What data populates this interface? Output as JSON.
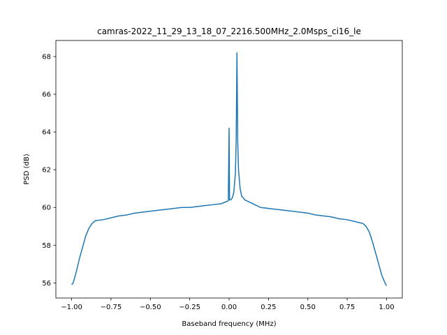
{
  "chart_data": {
    "type": "line",
    "title": "camras-2022_11_29_13_18_07_2216.500MHz_2.0Msps_ci16_le",
    "x_label": "Baseband frequency (MHz)",
    "y_label": "PSD (dB)",
    "x": [
      -1.0,
      -0.99,
      -0.97,
      -0.95,
      -0.93,
      -0.91,
      -0.89,
      -0.87,
      -0.85,
      -0.8,
      -0.75,
      -0.7,
      -0.65,
      -0.6,
      -0.55,
      -0.5,
      -0.45,
      -0.4,
      -0.35,
      -0.3,
      -0.25,
      -0.2,
      -0.15,
      -0.1,
      -0.05,
      -0.02,
      -0.005,
      0.0,
      0.003,
      0.01,
      0.02,
      0.03,
      0.04,
      0.045,
      0.05,
      0.055,
      0.06,
      0.07,
      0.08,
      0.1,
      0.15,
      0.2,
      0.25,
      0.3,
      0.35,
      0.4,
      0.45,
      0.5,
      0.55,
      0.6,
      0.65,
      0.7,
      0.75,
      0.8,
      0.85,
      0.87,
      0.89,
      0.91,
      0.93,
      0.95,
      0.97,
      0.99,
      1.0
    ],
    "series": [
      {
        "name": "PSD",
        "color": "#1f77b4",
        "values": [
          55.9,
          56.0,
          56.6,
          57.3,
          57.9,
          58.5,
          58.9,
          59.15,
          59.3,
          59.35,
          59.45,
          59.55,
          59.6,
          59.7,
          59.75,
          59.8,
          59.85,
          59.9,
          59.95,
          60.0,
          60.0,
          60.05,
          60.1,
          60.15,
          60.2,
          60.3,
          60.35,
          64.2,
          60.4,
          60.4,
          60.5,
          60.8,
          61.8,
          63.5,
          68.2,
          63.5,
          62.0,
          61.0,
          60.6,
          60.4,
          60.2,
          60.0,
          59.95,
          59.9,
          59.85,
          59.8,
          59.75,
          59.7,
          59.6,
          59.55,
          59.5,
          59.4,
          59.35,
          59.25,
          59.15,
          59.0,
          58.7,
          58.2,
          57.6,
          57.0,
          56.4,
          56.0,
          55.85
        ]
      }
    ],
    "xlim": [
      -1.1,
      1.1
    ],
    "ylim": [
      55.2,
      68.85
    ],
    "xticks": [
      {
        "value": -1.0,
        "label": "−1.00"
      },
      {
        "value": -0.75,
        "label": "−0.75"
      },
      {
        "value": -0.5,
        "label": "−0.50"
      },
      {
        "value": -0.25,
        "label": "−0.25"
      },
      {
        "value": 0.0,
        "label": "0.00"
      },
      {
        "value": 0.25,
        "label": "0.25"
      },
      {
        "value": 0.5,
        "label": "0.50"
      },
      {
        "value": 0.75,
        "label": "0.75"
      },
      {
        "value": 1.0,
        "label": "1.00"
      }
    ],
    "yticks": [
      56,
      58,
      60,
      62,
      64,
      66,
      68
    ]
  }
}
